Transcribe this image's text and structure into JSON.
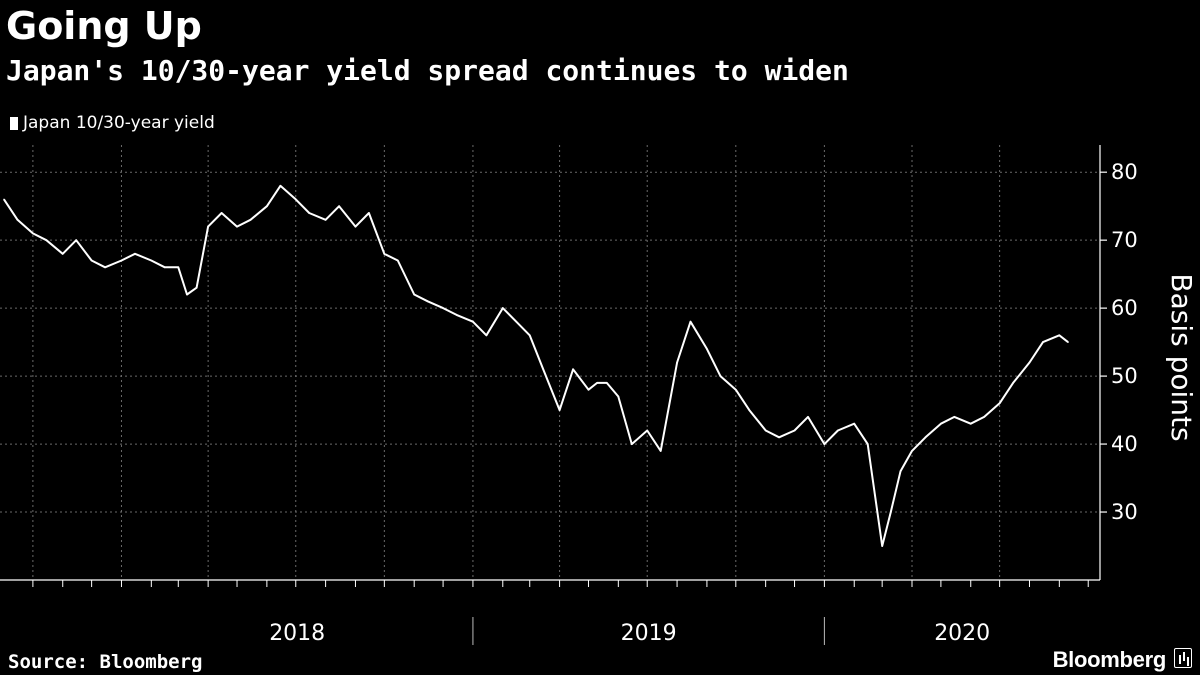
{
  "header": {
    "title": "Going Up",
    "subtitle": "Japan's 10/30-year yield spread continues to widen"
  },
  "footer": {
    "source": "Source: Bloomberg",
    "brand": "Bloomberg"
  },
  "colors": {
    "background": "#000000",
    "line": "#ffffff",
    "grid": "#6a6a6a",
    "text": "#ffffff"
  },
  "chart_data": {
    "type": "line",
    "title": "Going Up",
    "subtitle": "Japan's 10/30-year yield spread continues to widen",
    "ylabel": "Basis points",
    "ylim": [
      20,
      84
    ],
    "yticks": [
      30,
      40,
      50,
      60,
      70,
      80
    ],
    "xlabels": [
      "2018",
      "2019",
      "2020"
    ],
    "grid": true,
    "legend_position": "top-left",
    "series": [
      {
        "name": "Japan 10/30-year yield",
        "x": [
          "2017-09-01",
          "2017-09-15",
          "2017-10-01",
          "2017-10-15",
          "2017-11-01",
          "2017-11-15",
          "2017-12-01",
          "2017-12-15",
          "2018-01-01",
          "2018-01-15",
          "2018-02-01",
          "2018-02-15",
          "2018-03-01",
          "2018-03-10",
          "2018-03-20",
          "2018-04-01",
          "2018-04-15",
          "2018-05-01",
          "2018-05-15",
          "2018-06-01",
          "2018-06-15",
          "2018-07-01",
          "2018-07-15",
          "2018-08-01",
          "2018-08-15",
          "2018-09-01",
          "2018-09-15",
          "2018-10-01",
          "2018-10-15",
          "2018-11-01",
          "2018-11-15",
          "2018-12-01",
          "2018-12-15",
          "2019-01-01",
          "2019-01-15",
          "2019-02-01",
          "2019-02-15",
          "2019-03-01",
          "2019-03-15",
          "2019-04-01",
          "2019-04-15",
          "2019-05-01",
          "2019-05-10",
          "2019-05-20",
          "2019-06-01",
          "2019-06-15",
          "2019-07-01",
          "2019-07-15",
          "2019-08-01",
          "2019-08-15",
          "2019-09-01",
          "2019-09-15",
          "2019-10-01",
          "2019-10-15",
          "2019-11-01",
          "2019-11-15",
          "2019-12-01",
          "2019-12-15",
          "2020-01-01",
          "2020-01-15",
          "2020-02-01",
          "2020-02-15",
          "2020-03-01",
          "2020-03-10",
          "2020-03-20",
          "2020-04-01",
          "2020-04-15",
          "2020-05-01",
          "2020-05-15",
          "2020-06-01",
          "2020-06-15",
          "2020-07-01",
          "2020-07-15",
          "2020-08-01",
          "2020-08-15",
          "2020-09-01",
          "2020-09-10"
        ],
        "values": [
          76,
          73,
          71,
          70,
          68,
          70,
          67,
          66,
          67,
          68,
          67,
          66,
          66,
          62,
          63,
          72,
          74,
          72,
          73,
          75,
          78,
          76,
          74,
          73,
          75,
          72,
          74,
          68,
          67,
          62,
          61,
          60,
          59,
          58,
          56,
          60,
          58,
          56,
          51,
          45,
          51,
          48,
          49,
          49,
          47,
          40,
          42,
          39,
          52,
          58,
          54,
          50,
          48,
          45,
          42,
          41,
          42,
          44,
          40,
          42,
          43,
          40,
          25,
          30,
          36,
          39,
          41,
          43,
          44,
          43,
          44,
          46,
          49,
          52,
          55,
          56,
          55
        ]
      }
    ]
  }
}
